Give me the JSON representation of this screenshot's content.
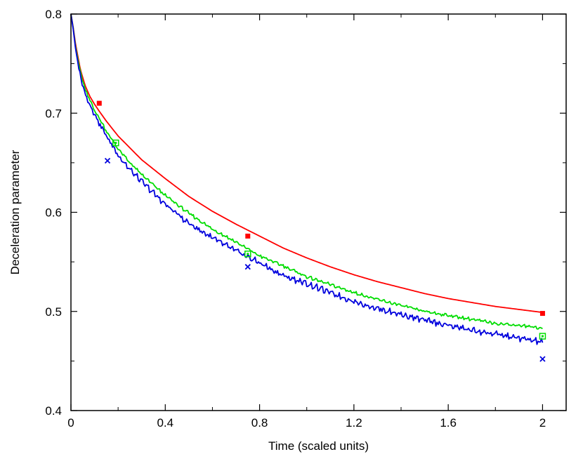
{
  "chart_data": {
    "type": "line",
    "xlabel": "Time (scaled units)",
    "ylabel": "Deceleration parameter",
    "xlim": [
      0,
      2.1
    ],
    "ylim": [
      0.4,
      0.8
    ],
    "xticks": [
      0,
      0.4,
      0.8,
      1.2,
      1.6,
      2
    ],
    "xtick_labels": [
      "0",
      "0.4",
      "0.8",
      "1.2",
      "1.6",
      "2"
    ],
    "yticks": [
      0.4,
      0.5,
      0.6,
      0.7,
      0.8
    ],
    "ytick_labels": [
      "0.4",
      "0.5",
      "0.6",
      "0.7",
      "0.8"
    ],
    "grid": false,
    "legend": "none",
    "series": [
      {
        "color": "#ff0000",
        "style": "smooth",
        "x": [
          0.0,
          0.01,
          0.02,
          0.04,
          0.06,
          0.08,
          0.1,
          0.12,
          0.15,
          0.2,
          0.25,
          0.3,
          0.4,
          0.5,
          0.6,
          0.7,
          0.8,
          0.9,
          1.0,
          1.1,
          1.2,
          1.3,
          1.4,
          1.5,
          1.6,
          1.7,
          1.8,
          1.9,
          2.0
        ],
        "y": [
          0.8,
          0.786,
          0.769,
          0.744,
          0.728,
          0.717,
          0.709,
          0.702,
          0.692,
          0.677,
          0.665,
          0.653,
          0.634,
          0.616,
          0.601,
          0.588,
          0.576,
          0.564,
          0.554,
          0.545,
          0.537,
          0.53,
          0.524,
          0.518,
          0.513,
          0.509,
          0.505,
          0.502,
          0.499
        ]
      },
      {
        "color": "#00dd00",
        "style": "slightly-jagged",
        "x": [
          0.0,
          0.01,
          0.02,
          0.04,
          0.06,
          0.08,
          0.1,
          0.12,
          0.15,
          0.2,
          0.25,
          0.3,
          0.4,
          0.5,
          0.6,
          0.7,
          0.8,
          0.9,
          1.0,
          1.1,
          1.2,
          1.3,
          1.4,
          1.5,
          1.6,
          1.7,
          1.8,
          1.9,
          2.0
        ],
        "y": [
          0.8,
          0.785,
          0.766,
          0.741,
          0.724,
          0.713,
          0.703,
          0.695,
          0.682,
          0.664,
          0.65,
          0.638,
          0.617,
          0.599,
          0.583,
          0.57,
          0.556,
          0.546,
          0.535,
          0.527,
          0.519,
          0.512,
          0.506,
          0.5,
          0.496,
          0.492,
          0.488,
          0.486,
          0.483
        ]
      },
      {
        "color": "#0000dd",
        "style": "jagged",
        "x": [
          0.0,
          0.01,
          0.02,
          0.04,
          0.06,
          0.08,
          0.1,
          0.12,
          0.15,
          0.2,
          0.25,
          0.3,
          0.4,
          0.5,
          0.6,
          0.7,
          0.8,
          0.9,
          1.0,
          1.1,
          1.2,
          1.3,
          1.4,
          1.5,
          1.6,
          1.7,
          1.8,
          1.9,
          2.0
        ],
        "y": [
          0.8,
          0.784,
          0.764,
          0.737,
          0.72,
          0.709,
          0.699,
          0.69,
          0.677,
          0.658,
          0.643,
          0.631,
          0.608,
          0.589,
          0.574,
          0.561,
          0.549,
          0.536,
          0.528,
          0.519,
          0.51,
          0.503,
          0.497,
          0.491,
          0.486,
          0.481,
          0.477,
          0.473,
          0.469
        ]
      }
    ],
    "markers": [
      {
        "color": "#ff0000",
        "shape": "filled-square",
        "x": [
          0.12,
          0.75,
          2.0
        ],
        "y": [
          0.71,
          0.576,
          0.498
        ]
      },
      {
        "color": "#00dd00",
        "shape": "open-square",
        "x": [
          0.19,
          0.75,
          2.0
        ],
        "y": [
          0.67,
          0.558,
          0.475
        ]
      },
      {
        "color": "#0000dd",
        "shape": "cross",
        "x": [
          0.155,
          0.75,
          2.0
        ],
        "y": [
          0.652,
          0.545,
          0.452
        ]
      }
    ]
  }
}
